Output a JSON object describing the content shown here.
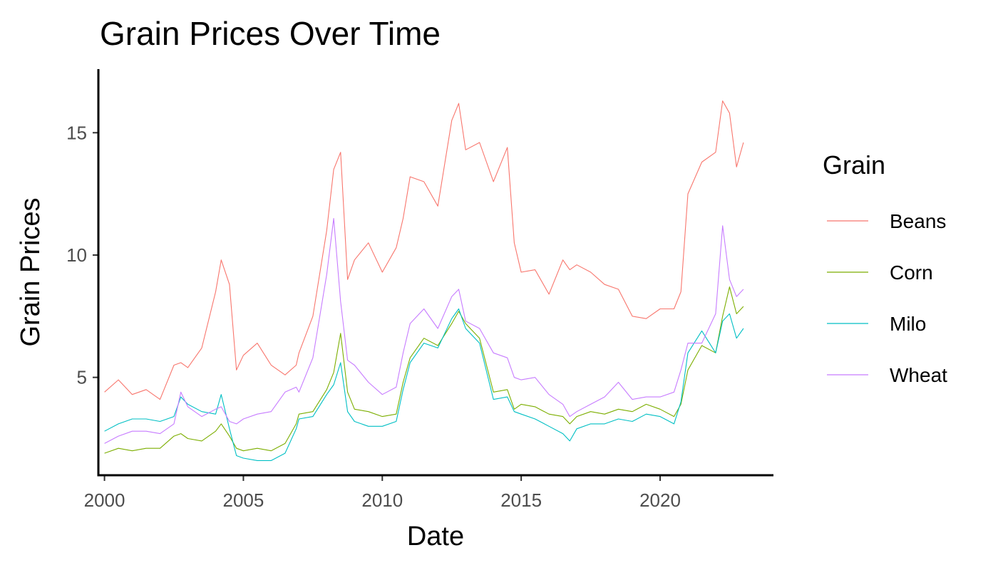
{
  "chart_data": {
    "type": "line",
    "title": "Grain Prices Over Time",
    "xlabel": "Date",
    "ylabel": "Grain Prices",
    "xlim": [
      1999.78,
      2024.08
    ],
    "ylim": [
      1.0,
      17.6
    ],
    "x_ticks": [
      2000,
      2005,
      2010,
      2015,
      2020
    ],
    "x_tick_labels": [
      "2000",
      "2005",
      "2010",
      "2015",
      "2020"
    ],
    "y_ticks": [
      5,
      10,
      15
    ],
    "y_tick_labels": [
      "5",
      "10",
      "15"
    ],
    "grid": false,
    "legend": {
      "title": "Grain",
      "position": "right"
    },
    "x": [
      2000.0,
      2000.5,
      2001.0,
      2001.5,
      2002.0,
      2002.5,
      2002.75,
      2003.0,
      2003.5,
      2004.0,
      2004.2,
      2004.5,
      2004.75,
      2005.0,
      2005.5,
      2006.0,
      2006.5,
      2006.9,
      2007.0,
      2007.5,
      2008.0,
      2008.25,
      2008.5,
      2008.75,
      2009.0,
      2009.5,
      2010.0,
      2010.5,
      2010.75,
      2011.0,
      2011.5,
      2012.0,
      2012.5,
      2012.75,
      2013.0,
      2013.5,
      2014.0,
      2014.5,
      2014.75,
      2015.0,
      2015.5,
      2016.0,
      2016.5,
      2016.75,
      2017.0,
      2017.5,
      2018.0,
      2018.5,
      2019.0,
      2019.5,
      2020.0,
      2020.5,
      2020.75,
      2021.0,
      2021.5,
      2022.0,
      2022.25,
      2022.5,
      2022.75,
      2023.0
    ],
    "series": [
      {
        "name": "Beans",
        "color": "#F8766D",
        "values": [
          4.4,
          4.9,
          4.3,
          4.5,
          4.1,
          5.5,
          5.6,
          5.4,
          6.2,
          8.5,
          9.8,
          8.8,
          5.3,
          5.9,
          6.4,
          5.5,
          5.1,
          5.5,
          6.0,
          7.5,
          11.0,
          13.5,
          14.2,
          9.0,
          9.8,
          10.5,
          9.3,
          10.3,
          11.5,
          13.2,
          13.0,
          12.0,
          15.5,
          16.2,
          14.3,
          14.6,
          13.0,
          14.4,
          10.5,
          9.3,
          9.4,
          8.4,
          9.8,
          9.4,
          9.6,
          9.3,
          8.8,
          8.6,
          7.5,
          7.4,
          7.8,
          7.8,
          8.5,
          12.5,
          13.8,
          14.2,
          16.3,
          15.8,
          13.6,
          14.6
        ]
      },
      {
        "name": "Corn",
        "color": "#7CAE00",
        "values": [
          1.9,
          2.1,
          2.0,
          2.1,
          2.1,
          2.6,
          2.7,
          2.5,
          2.4,
          2.8,
          3.1,
          2.6,
          2.1,
          2.0,
          2.1,
          2.0,
          2.3,
          3.1,
          3.5,
          3.6,
          4.5,
          5.2,
          6.8,
          4.4,
          3.7,
          3.6,
          3.4,
          3.5,
          4.8,
          5.8,
          6.6,
          6.3,
          7.2,
          7.7,
          7.2,
          6.6,
          4.4,
          4.5,
          3.7,
          3.9,
          3.8,
          3.5,
          3.4,
          3.1,
          3.4,
          3.6,
          3.5,
          3.7,
          3.6,
          3.9,
          3.7,
          3.4,
          3.9,
          5.3,
          6.3,
          6.0,
          7.5,
          8.7,
          7.6,
          7.9
        ]
      },
      {
        "name": "Milo",
        "color": "#00BFC4",
        "values": [
          2.8,
          3.1,
          3.3,
          3.3,
          3.2,
          3.4,
          4.2,
          3.9,
          3.6,
          3.5,
          4.3,
          2.9,
          1.8,
          1.7,
          1.6,
          1.6,
          1.9,
          2.9,
          3.3,
          3.4,
          4.3,
          4.7,
          5.6,
          3.6,
          3.2,
          3.0,
          3.0,
          3.2,
          4.5,
          5.6,
          6.4,
          6.2,
          7.4,
          7.8,
          7.0,
          6.4,
          4.1,
          4.2,
          3.6,
          3.5,
          3.3,
          3.0,
          2.7,
          2.4,
          2.9,
          3.1,
          3.1,
          3.3,
          3.2,
          3.5,
          3.4,
          3.1,
          4.0,
          6.0,
          6.9,
          6.0,
          7.3,
          7.6,
          6.6,
          7.0
        ]
      },
      {
        "name": "Wheat",
        "color": "#C77CFF",
        "values": [
          2.3,
          2.6,
          2.8,
          2.8,
          2.7,
          3.1,
          4.4,
          3.8,
          3.4,
          3.7,
          3.8,
          3.2,
          3.1,
          3.3,
          3.5,
          3.6,
          4.4,
          4.6,
          4.4,
          5.8,
          9.2,
          11.5,
          8.1,
          5.7,
          5.5,
          4.8,
          4.3,
          4.6,
          6.0,
          7.2,
          7.8,
          7.0,
          8.3,
          8.6,
          7.3,
          7.0,
          6.0,
          5.8,
          5.0,
          4.9,
          5.0,
          4.3,
          3.9,
          3.4,
          3.6,
          3.9,
          4.2,
          4.8,
          4.1,
          4.2,
          4.2,
          4.4,
          5.3,
          6.4,
          6.4,
          7.6,
          11.2,
          9.0,
          8.3,
          8.6
        ]
      }
    ]
  }
}
